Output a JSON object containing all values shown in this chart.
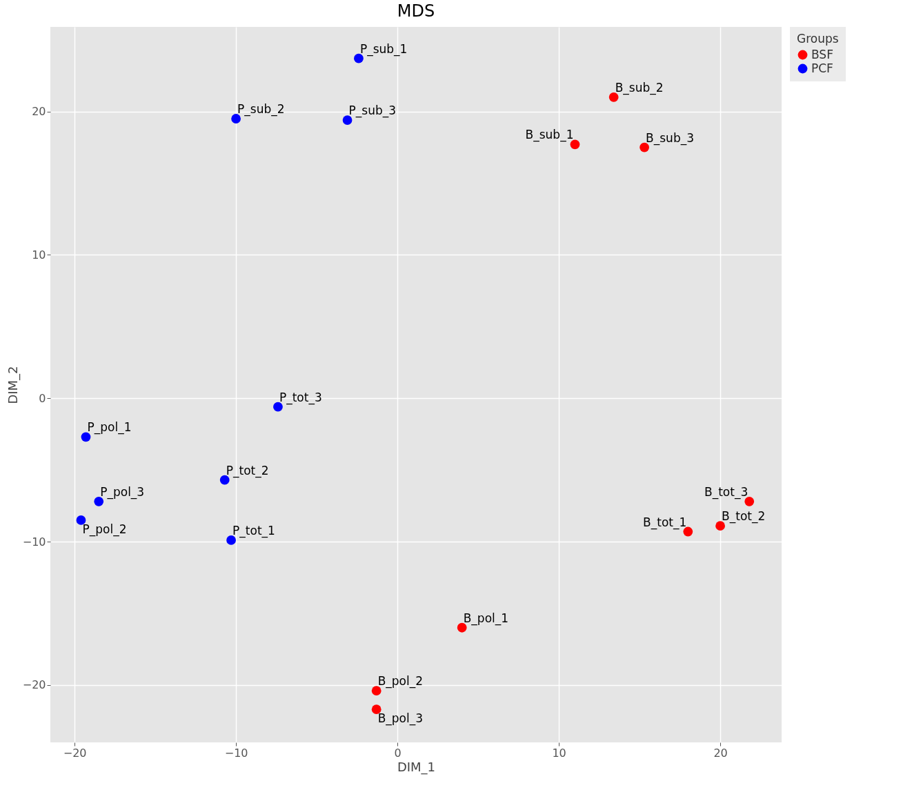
{
  "chart_data": {
    "type": "scatter",
    "title": "MDS",
    "xlabel": "DIM_1",
    "ylabel": "DIM_2",
    "legend_title": "Groups",
    "xlim": [
      -21.5,
      23.8
    ],
    "ylim": [
      -24.0,
      25.9
    ],
    "xticks": [
      -20,
      -10,
      0,
      10,
      20
    ],
    "yticks": [
      -20,
      -10,
      0,
      10,
      20
    ],
    "grid": true,
    "legend": "top right",
    "marker": "circle",
    "series": [
      {
        "name": "BSF",
        "color": "#ff0000",
        "x": [
          13.4,
          11.0,
          15.3,
          21.8,
          20.0,
          18.0,
          4.0,
          -1.3,
          -1.3
        ],
        "values": [
          21.0,
          17.7,
          17.5,
          -7.2,
          -8.9,
          -9.3,
          -16.0,
          -20.4,
          -21.7
        ]
      },
      {
        "name": "PCF",
        "color": "#0000ff",
        "x": [
          -2.4,
          -10.0,
          -3.1,
          -7.4,
          -19.3,
          -10.7,
          -18.5,
          -19.6,
          -10.3
        ],
        "values": [
          23.7,
          19.5,
          19.4,
          -0.6,
          -2.7,
          -5.7,
          -7.2,
          -8.5,
          -9.9
        ]
      }
    ],
    "annotations": [
      {
        "text": "B_sub_2",
        "x": 13.4,
        "y": 21.0
      },
      {
        "text": "B_sub_1",
        "x": 11.0,
        "y": 17.7
      },
      {
        "text": "B_sub_3",
        "x": 15.3,
        "y": 17.5
      },
      {
        "text": "B_tot_3",
        "x": 21.8,
        "y": -7.2
      },
      {
        "text": "B_tot_2",
        "x": 20.0,
        "y": -8.9
      },
      {
        "text": "B_tot_1",
        "x": 18.0,
        "y": -9.3
      },
      {
        "text": "B_pol_1",
        "x": 4.0,
        "y": -16.0
      },
      {
        "text": "B_pol_2",
        "x": -1.3,
        "y": -20.4
      },
      {
        "text": "B_pol_3",
        "x": -1.3,
        "y": -21.7
      },
      {
        "text": "P_sub_1",
        "x": -2.4,
        "y": 23.7
      },
      {
        "text": "P_sub_2",
        "x": -10.0,
        "y": 19.5
      },
      {
        "text": "P_sub_3",
        "x": -3.1,
        "y": 19.4
      },
      {
        "text": "P_tot_3",
        "x": -7.4,
        "y": -0.6
      },
      {
        "text": "P_pol_1",
        "x": -19.3,
        "y": -2.7
      },
      {
        "text": "P_tot_2",
        "x": -10.7,
        "y": -5.7
      },
      {
        "text": "P_pol_3",
        "x": -18.5,
        "y": -7.2
      },
      {
        "text": "P_pol_2",
        "x": -19.6,
        "y": -8.5
      },
      {
        "text": "P_tot_1",
        "x": -10.3,
        "y": -9.9
      }
    ]
  }
}
